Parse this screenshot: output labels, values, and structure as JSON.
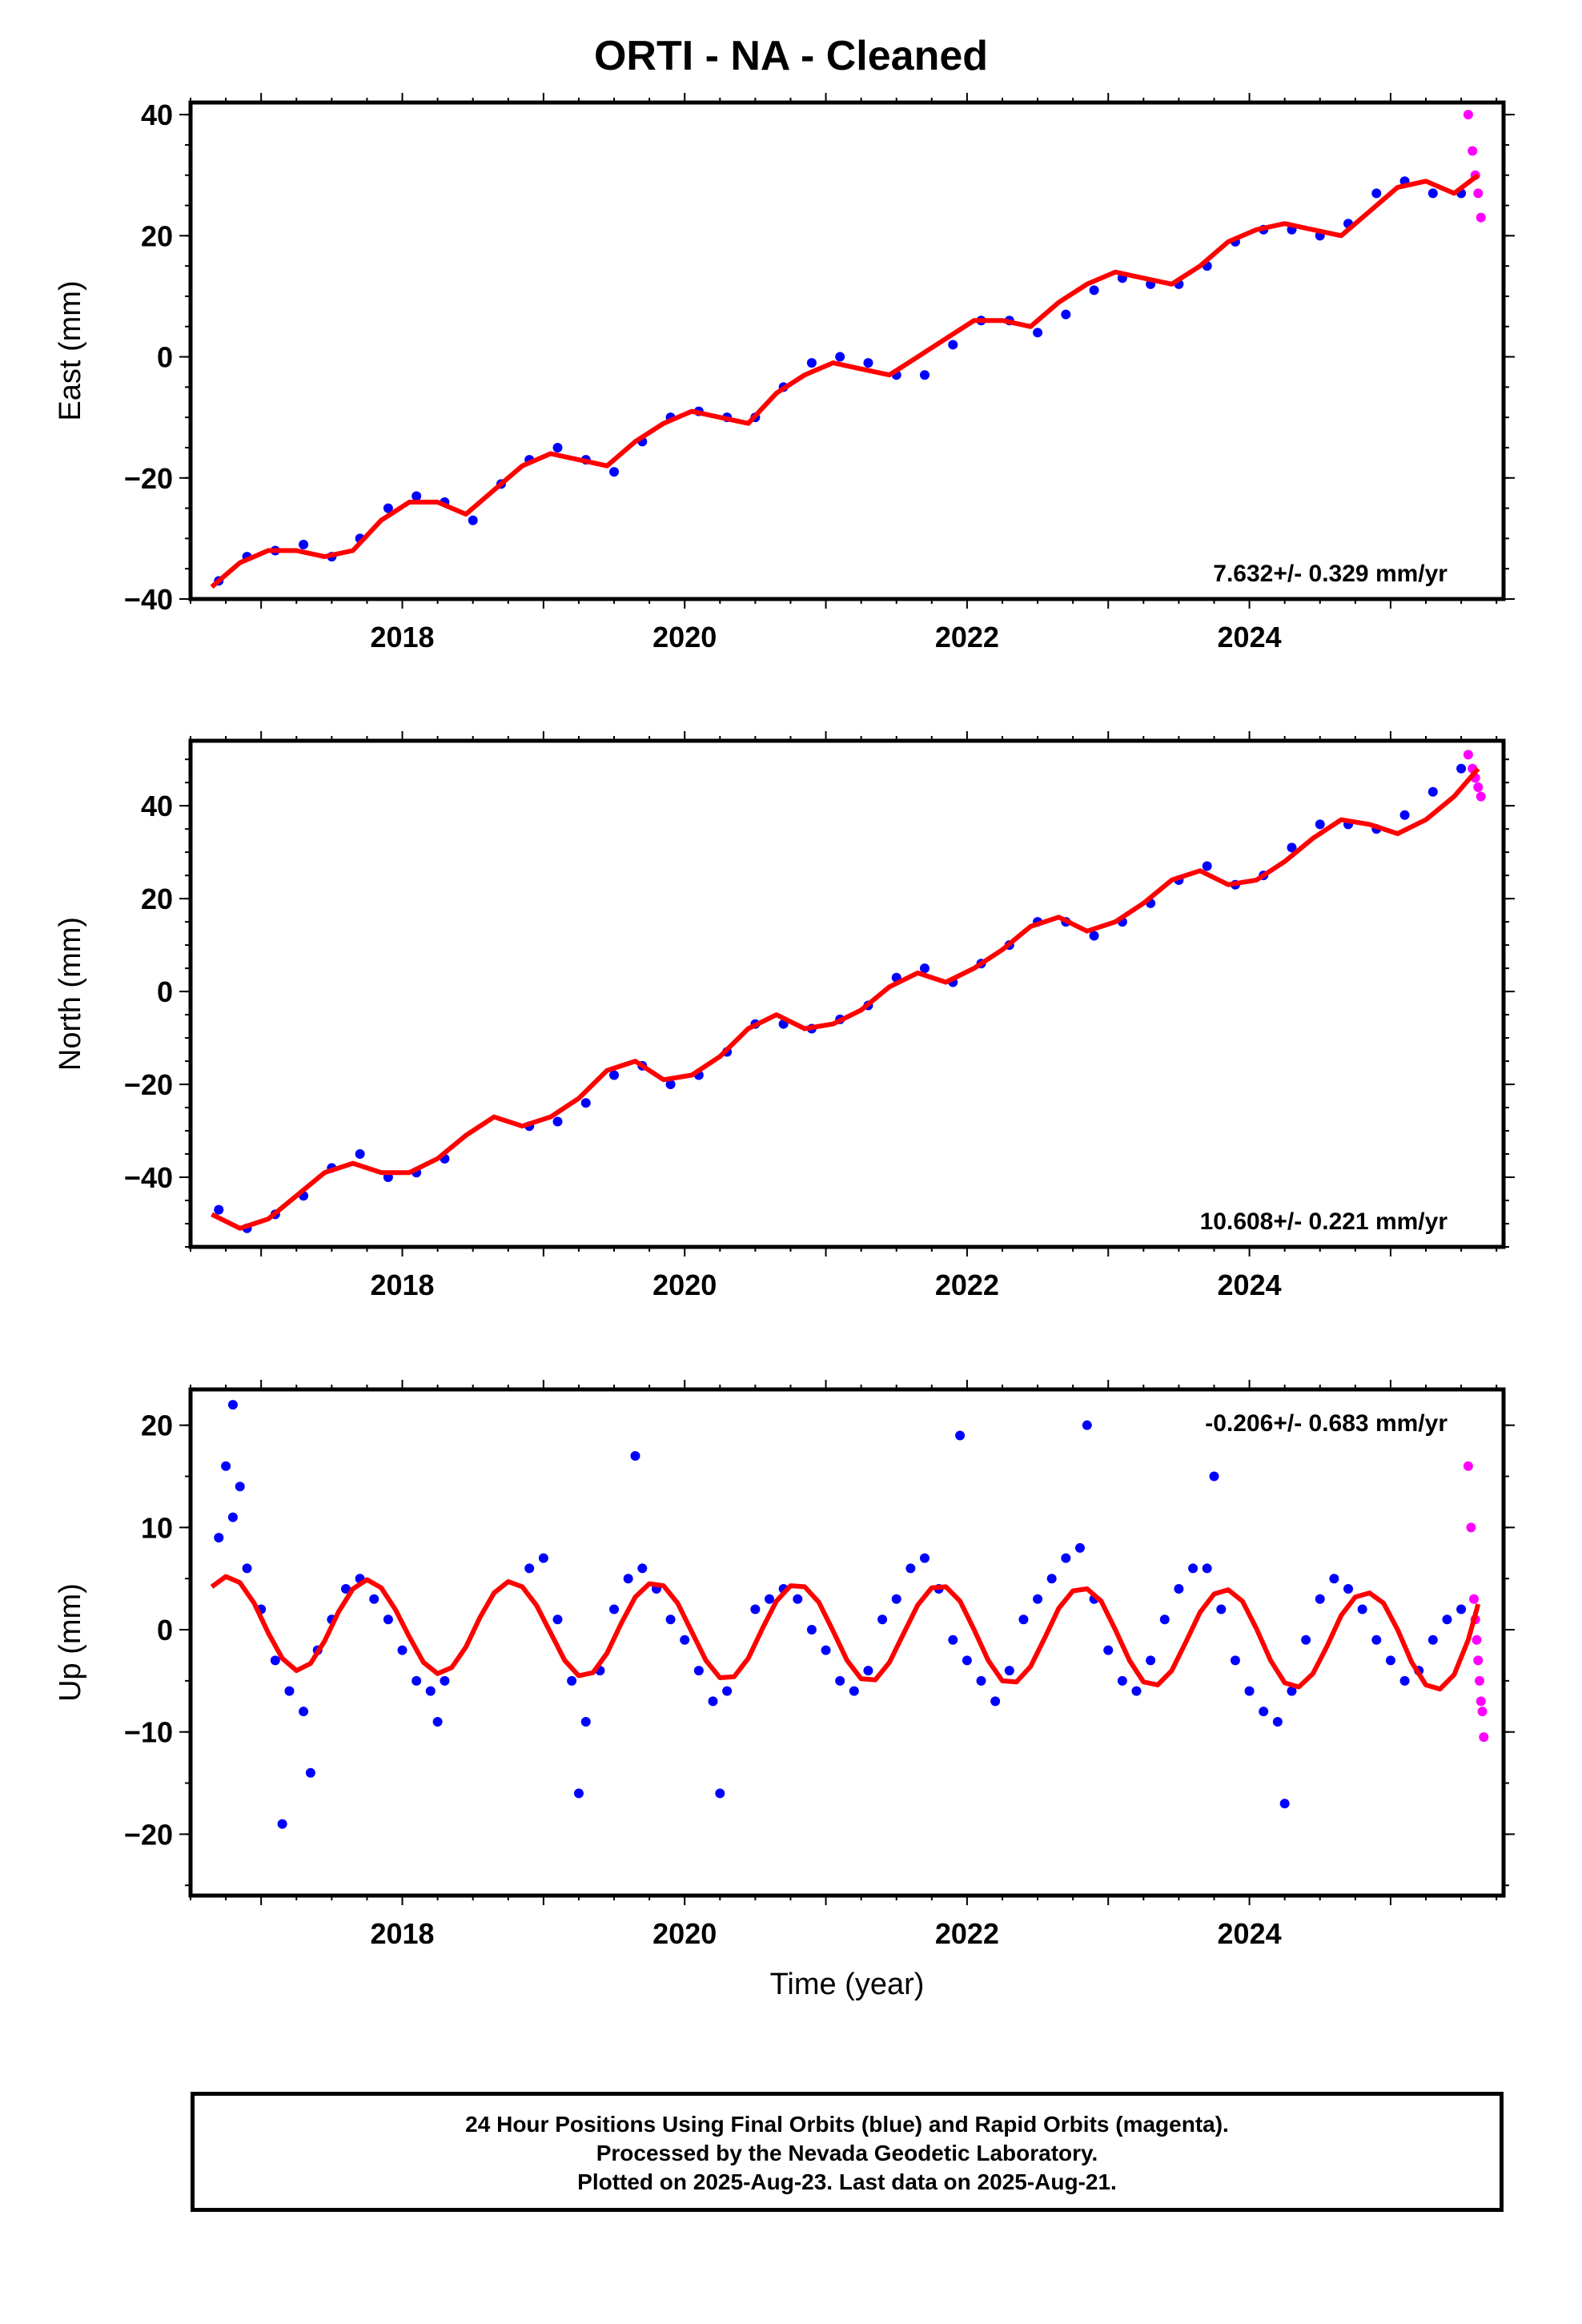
{
  "chart_data": {
    "title": "ORTI  - NA - Cleaned",
    "xlabel": "Time (year)",
    "x_ticks": [
      "2018",
      "2020",
      "2022",
      "2024"
    ],
    "xlim": [
      2016.5,
      2025.8
    ],
    "series_colors": {
      "final_orbits": "#0000ff",
      "rapid_orbits": "#ff00ff",
      "model": "#ff0000"
    },
    "panels": [
      {
        "type": "scatter",
        "ylabel": "East (mm)",
        "ylim": [
          -40,
          42
        ],
        "y_ticks": [
          "−40",
          "−20",
          "0",
          "20",
          "40"
        ],
        "rate": "7.632+/- 0.329 mm/yr",
        "rate_pos": "bottom-right",
        "final_orbits": {
          "x": [
            2016.7,
            2016.9,
            2017.1,
            2017.3,
            2017.5,
            2017.7,
            2017.9,
            2018.1,
            2018.3,
            2018.5,
            2018.7,
            2018.9,
            2019.1,
            2019.3,
            2019.5,
            2019.7,
            2019.9,
            2020.1,
            2020.3,
            2020.5,
            2020.7,
            2020.9,
            2021.1,
            2021.3,
            2021.5,
            2021.7,
            2021.9,
            2022.1,
            2022.3,
            2022.5,
            2022.7,
            2022.9,
            2023.1,
            2023.3,
            2023.5,
            2023.7,
            2023.9,
            2024.1,
            2024.3,
            2024.5,
            2024.7,
            2024.9,
            2025.1,
            2025.3,
            2025.5
          ],
          "y": [
            -37,
            -33,
            -32,
            -31,
            -33,
            -30,
            -25,
            -23,
            -24,
            -27,
            -21,
            -17,
            -15,
            -17,
            -19,
            -14,
            -10,
            -9,
            -10,
            -10,
            -5,
            -1,
            0,
            -1,
            -3,
            -3,
            2,
            6,
            6,
            4,
            7,
            11,
            13,
            12,
            12,
            15,
            19,
            21,
            21,
            20,
            22,
            27,
            29,
            27,
            27
          ]
        },
        "rapid_orbits": {
          "x": [
            2025.55,
            2025.58,
            2025.6,
            2025.62,
            2025.64
          ],
          "y": [
            40,
            34,
            30,
            27,
            23
          ]
        },
        "model": {
          "x": [
            2016.65,
            2016.85,
            2017.05,
            2017.25,
            2017.45,
            2017.65,
            2017.85,
            2018.05,
            2018.25,
            2018.45,
            2018.65,
            2018.85,
            2019.05,
            2019.25,
            2019.45,
            2019.65,
            2019.85,
            2020.05,
            2020.25,
            2020.45,
            2020.65,
            2020.85,
            2021.05,
            2021.25,
            2021.45,
            2021.65,
            2021.85,
            2022.05,
            2022.25,
            2022.45,
            2022.65,
            2022.85,
            2023.05,
            2023.25,
            2023.45,
            2023.65,
            2023.85,
            2024.05,
            2024.25,
            2024.45,
            2024.65,
            2024.85,
            2025.05,
            2025.25,
            2025.45,
            2025.62
          ],
          "y": [
            -38,
            -34,
            -32,
            -32,
            -33,
            -32,
            -27,
            -24,
            -24,
            -26,
            -22,
            -18,
            -16,
            -17,
            -18,
            -14,
            -11,
            -9,
            -10,
            -11,
            -6,
            -3,
            -1,
            -2,
            -3,
            0,
            3,
            6,
            6,
            5,
            9,
            12,
            14,
            13,
            12,
            15,
            19,
            21,
            22,
            21,
            20,
            24,
            28,
            29,
            27,
            30
          ]
        }
      },
      {
        "type": "scatter",
        "ylabel": "North (mm)",
        "ylim": [
          -55,
          54
        ],
        "y_ticks": [
          "−40",
          "−20",
          "0",
          "20",
          "40"
        ],
        "rate": "10.608+/- 0.221 mm/yr",
        "rate_pos": "bottom-right",
        "final_orbits": {
          "x": [
            2016.7,
            2016.9,
            2017.1,
            2017.3,
            2017.5,
            2017.7,
            2017.9,
            2018.1,
            2018.3,
            2018.9,
            2019.1,
            2019.3,
            2019.5,
            2019.7,
            2019.9,
            2020.1,
            2020.3,
            2020.5,
            2020.7,
            2020.9,
            2021.1,
            2021.3,
            2021.5,
            2021.7,
            2021.9,
            2022.1,
            2022.3,
            2022.5,
            2022.7,
            2022.9,
            2023.1,
            2023.3,
            2023.5,
            2023.7,
            2023.9,
            2024.1,
            2024.3,
            2024.5,
            2024.7,
            2024.9,
            2025.1,
            2025.3,
            2025.5
          ],
          "y": [
            -47,
            -51,
            -48,
            -44,
            -38,
            -35,
            -40,
            -39,
            -36,
            -29,
            -28,
            -24,
            -18,
            -16,
            -20,
            -18,
            -13,
            -7,
            -7,
            -8,
            -6,
            -3,
            3,
            5,
            2,
            6,
            10,
            15,
            15,
            12,
            15,
            19,
            24,
            27,
            23,
            25,
            31,
            36,
            36,
            35,
            38,
            43,
            48
          ]
        },
        "rapid_orbits": {
          "x": [
            2025.55,
            2025.58,
            2025.6,
            2025.62,
            2025.64
          ],
          "y": [
            51,
            48,
            46,
            44,
            42
          ]
        },
        "model": {
          "x": [
            2016.65,
            2016.85,
            2017.05,
            2017.25,
            2017.45,
            2017.65,
            2017.85,
            2018.05,
            2018.25,
            2018.45,
            2018.65,
            2018.85,
            2019.05,
            2019.25,
            2019.45,
            2019.65,
            2019.85,
            2020.05,
            2020.25,
            2020.45,
            2020.65,
            2020.85,
            2021.05,
            2021.25,
            2021.45,
            2021.65,
            2021.85,
            2022.05,
            2022.25,
            2022.45,
            2022.65,
            2022.85,
            2023.05,
            2023.25,
            2023.45,
            2023.65,
            2023.85,
            2024.05,
            2024.25,
            2024.45,
            2024.65,
            2024.85,
            2025.05,
            2025.25,
            2025.45,
            2025.62
          ],
          "y": [
            -48,
            -51,
            -49,
            -44,
            -39,
            -37,
            -39,
            -39,
            -36,
            -31,
            -27,
            -29,
            -27,
            -23,
            -17,
            -15,
            -19,
            -18,
            -14,
            -8,
            -5,
            -8,
            -7,
            -4,
            1,
            4,
            2,
            5,
            9,
            14,
            16,
            13,
            15,
            19,
            24,
            26,
            23,
            24,
            28,
            33,
            37,
            36,
            34,
            37,
            42,
            48
          ]
        }
      },
      {
        "type": "scatter",
        "ylabel": "Up (mm)",
        "ylim": [
          -26,
          23.5
        ],
        "y_ticks": [
          "−20",
          "−10",
          "0",
          "10",
          "20"
        ],
        "rate": "-0.206+/- 0.683 mm/yr",
        "rate_pos": "top-right",
        "final_orbits": {
          "x": [
            2016.7,
            2016.8,
            2016.9,
            2017.0,
            2017.1,
            2017.2,
            2017.3,
            2017.4,
            2017.5,
            2017.6,
            2017.7,
            2017.8,
            2017.9,
            2018.0,
            2018.1,
            2018.2,
            2018.3,
            2018.9,
            2019.0,
            2019.1,
            2019.2,
            2019.3,
            2019.4,
            2019.5,
            2019.6,
            2019.7,
            2019.8,
            2019.9,
            2020.0,
            2020.1,
            2020.2,
            2020.3,
            2020.5,
            2020.6,
            2020.7,
            2020.8,
            2020.9,
            2021.0,
            2021.1,
            2021.2,
            2021.3,
            2021.4,
            2021.5,
            2021.6,
            2021.7,
            2021.8,
            2021.9,
            2022.0,
            2022.1,
            2022.2,
            2022.3,
            2022.4,
            2022.5,
            2022.6,
            2022.7,
            2022.8,
            2022.9,
            2023.0,
            2023.1,
            2023.2,
            2023.3,
            2023.4,
            2023.5,
            2023.6,
            2023.7,
            2023.8,
            2023.9,
            2024.0,
            2024.1,
            2024.2,
            2024.3,
            2024.4,
            2024.5,
            2024.6,
            2024.7,
            2024.8,
            2024.9,
            2025.0,
            2025.1,
            2025.2,
            2025.3,
            2025.4,
            2025.5,
            2016.75,
            2016.85,
            2017.15,
            2017.35,
            2018.25,
            2019.25,
            2019.65,
            2020.25,
            2021.95,
            2022.85,
            2023.75,
            2024.25,
            2016.8
          ],
          "y": [
            9,
            11,
            6,
            2,
            -3,
            -6,
            -8,
            -2,
            1,
            4,
            5,
            3,
            1,
            -2,
            -5,
            -6,
            -5,
            6,
            7,
            1,
            -5,
            -9,
            -4,
            2,
            5,
            6,
            4,
            1,
            -1,
            -4,
            -7,
            -6,
            2,
            3,
            4,
            3,
            0,
            -2,
            -5,
            -6,
            -4,
            1,
            3,
            6,
            7,
            4,
            -1,
            -3,
            -5,
            -7,
            -4,
            1,
            3,
            5,
            7,
            8,
            3,
            -2,
            -5,
            -6,
            -3,
            1,
            4,
            6,
            6,
            2,
            -3,
            -6,
            -8,
            -9,
            -6,
            -1,
            3,
            5,
            4,
            2,
            -1,
            -3,
            -5,
            -4,
            -1,
            1,
            2,
            16,
            14,
            -19,
            -14,
            -9,
            -16,
            17,
            -16,
            19,
            20,
            15,
            -17,
            22
          ]
        },
        "rapid_orbits": {
          "x": [
            2025.55,
            2025.57,
            2025.59,
            2025.6,
            2025.61,
            2025.62,
            2025.63,
            2025.64,
            2025.65,
            2025.66
          ],
          "y": [
            16,
            10,
            3,
            1,
            -1,
            -3,
            -5,
            -7,
            -8,
            -10.5
          ]
        },
        "model": {
          "x": [
            2016.65,
            2016.75,
            2016.85,
            2016.95,
            2017.05,
            2017.15,
            2017.25,
            2017.35,
            2017.45,
            2017.55,
            2017.65,
            2017.75,
            2017.85,
            2017.95,
            2018.05,
            2018.15,
            2018.25,
            2018.35,
            2018.45,
            2018.55,
            2018.65,
            2018.75,
            2018.85,
            2018.95,
            2019.05,
            2019.15,
            2019.25,
            2019.35,
            2019.45,
            2019.55,
            2019.65,
            2019.75,
            2019.85,
            2019.95,
            2020.05,
            2020.15,
            2020.25,
            2020.35,
            2020.45,
            2020.55,
            2020.65,
            2020.75,
            2020.85,
            2020.95,
            2021.05,
            2021.15,
            2021.25,
            2021.35,
            2021.45,
            2021.55,
            2021.65,
            2021.75,
            2021.85,
            2021.95,
            2022.05,
            2022.15,
            2022.25,
            2022.35,
            2022.45,
            2022.55,
            2022.65,
            2022.75,
            2022.85,
            2022.95,
            2023.05,
            2023.15,
            2023.25,
            2023.35,
            2023.45,
            2023.55,
            2023.65,
            2023.75,
            2023.85,
            2023.95,
            2024.05,
            2024.15,
            2024.25,
            2024.35,
            2024.45,
            2024.55,
            2024.65,
            2024.75,
            2024.85,
            2024.95,
            2025.05,
            2025.15,
            2025.25,
            2025.35,
            2025.45,
            2025.55,
            2025.62
          ],
          "y": [
            4.2,
            5.2,
            4.6,
            2.6,
            -0.3,
            -2.8,
            -4.0,
            -3.3,
            -1.1,
            1.8,
            4.0,
            4.9,
            4.1,
            2.0,
            -0.7,
            -3.2,
            -4.3,
            -3.7,
            -1.7,
            1.2,
            3.6,
            4.7,
            4.2,
            2.4,
            -0.3,
            -3.0,
            -4.5,
            -4.2,
            -2.3,
            0.6,
            3.2,
            4.5,
            4.3,
            2.6,
            -0.2,
            -3.0,
            -4.7,
            -4.6,
            -2.8,
            0.1,
            2.8,
            4.3,
            4.2,
            2.7,
            -0.1,
            -3.0,
            -4.8,
            -4.9,
            -3.2,
            -0.4,
            2.4,
            4.1,
            4.2,
            2.8,
            0.0,
            -3.0,
            -5.0,
            -5.1,
            -3.6,
            -0.8,
            2.1,
            3.8,
            4.0,
            2.8,
            0.0,
            -3.0,
            -5.1,
            -5.4,
            -4.0,
            -1.2,
            1.7,
            3.5,
            3.9,
            2.8,
            0.1,
            -3.0,
            -5.2,
            -5.6,
            -4.3,
            -1.6,
            1.4,
            3.2,
            3.6,
            2.6,
            0.0,
            -3.2,
            -5.4,
            -5.8,
            -4.4,
            -1.0,
            2.5
          ]
        }
      }
    ]
  },
  "footer": {
    "line1": "24 Hour Positions Using Final Orbits (blue) and Rapid Orbits (magenta).",
    "line2": "Processed by the Nevada Geodetic Laboratory.",
    "line3": "Plotted on 2025-Aug-23. Last data on 2025-Aug-21."
  }
}
